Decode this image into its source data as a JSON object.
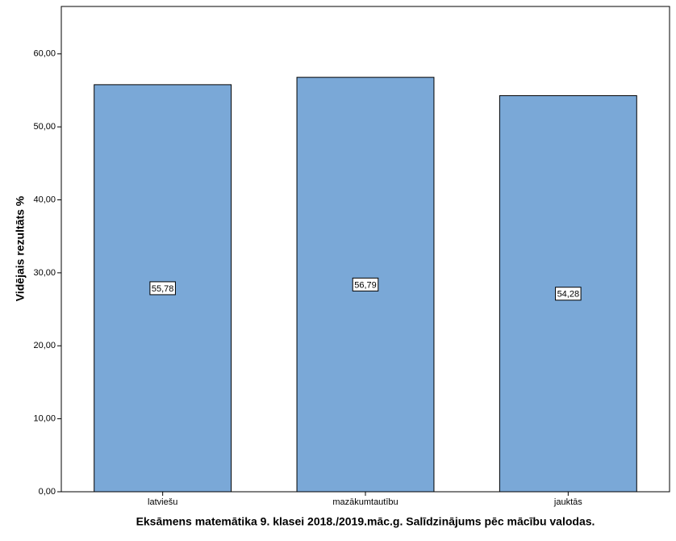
{
  "chart_data": {
    "type": "bar",
    "x_label": "Eksāmens matemātika 9. klasei 2018./2019.māc.g. Salīdzinājums pēc mācību valodas.",
    "y_label": "Vidējais rezultāts %",
    "categories": [
      "latviešu",
      "mazākumtautību",
      "jauktās"
    ],
    "values": [
      55.78,
      56.79,
      54.28
    ],
    "value_labels": [
      "55,78",
      "56,79",
      "54,28"
    ],
    "color": "#7aa8d7",
    "ylim": [
      0,
      66.5
    ],
    "yticks": [
      {
        "value": 0,
        "label": "0,00"
      },
      {
        "value": 10,
        "label": "10,00"
      },
      {
        "value": 20,
        "label": "20,00"
      },
      {
        "value": 30,
        "label": "30,00"
      },
      {
        "value": 40,
        "label": "40,00"
      },
      {
        "value": 50,
        "label": "50,00"
      },
      {
        "value": 60,
        "label": "60,00"
      }
    ],
    "grid": false
  }
}
